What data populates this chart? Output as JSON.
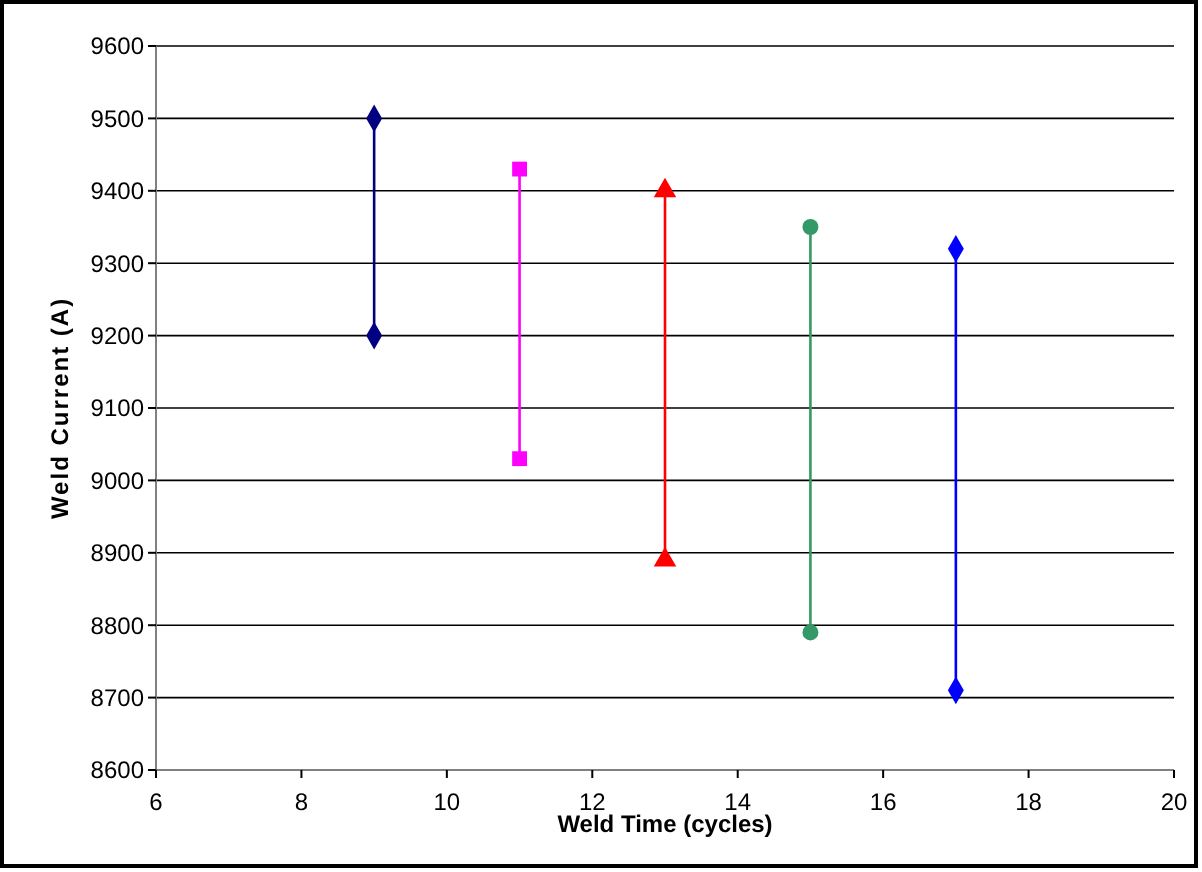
{
  "chart_data": {
    "type": "line",
    "xlabel": "Weld Time (cycles)",
    "ylabel": "Weld Current (A)",
    "xlim": [
      6,
      20
    ],
    "xticks": [
      6,
      8,
      10,
      12,
      14,
      16,
      18,
      20
    ],
    "ylim": [
      8600,
      9600
    ],
    "yticks": [
      8600,
      8700,
      8800,
      8900,
      9000,
      9100,
      9200,
      9300,
      9400,
      9500,
      9600
    ],
    "grid": "y",
    "series": [
      {
        "x": [
          9,
          9
        ],
        "values": [
          9200,
          9500
        ],
        "color": "#000080",
        "marker": "diamond"
      },
      {
        "x": [
          11,
          11
        ],
        "values": [
          9030,
          9430
        ],
        "color": "#ff00ff",
        "marker": "square"
      },
      {
        "x": [
          13,
          13
        ],
        "values": [
          8890,
          9400
        ],
        "color": "#ff0000",
        "marker": "triangle"
      },
      {
        "x": [
          15,
          15
        ],
        "values": [
          8790,
          9350
        ],
        "color": "#339966",
        "marker": "circle"
      },
      {
        "x": [
          17,
          17
        ],
        "values": [
          8710,
          9320
        ],
        "color": "#0000ff",
        "marker": "diamond"
      }
    ]
  }
}
